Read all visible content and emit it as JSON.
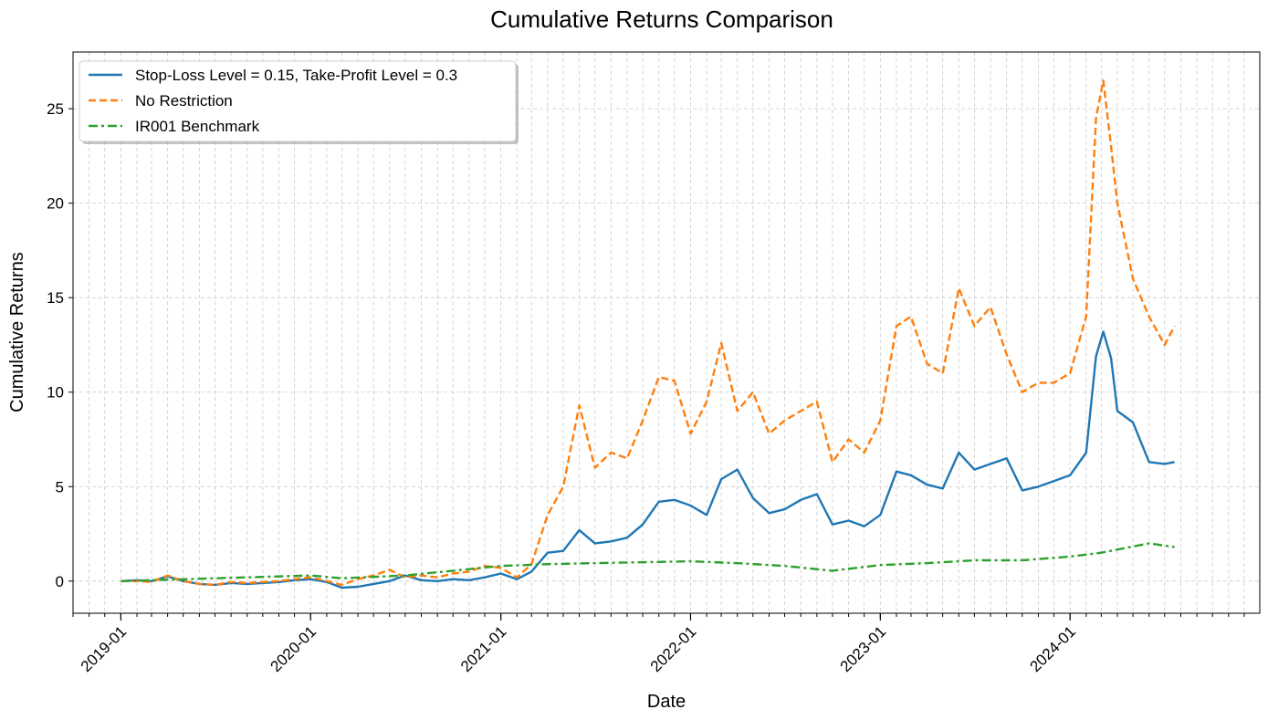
{
  "chart_data": {
    "type": "line",
    "title": "Cumulative Returns Comparison",
    "xlabel": "Date",
    "ylabel": "Cumulative Returns",
    "xlim": [
      "2018-10-01",
      "2024-12-31"
    ],
    "ylim": [
      -1.7,
      28
    ],
    "y_ticks": [
      0,
      5,
      10,
      15,
      20,
      25
    ],
    "x_ticks": [
      "2019-01",
      "2020-01",
      "2021-01",
      "2022-01",
      "2023-01",
      "2024-01"
    ],
    "grid": true,
    "legend_position": "top-left",
    "series": [
      {
        "name": "Stop-Loss Level = 0.15, Take-Profit Level = 0.3",
        "color": "#1f77b4",
        "style": "solid",
        "points": [
          [
            "2019-01-01",
            0
          ],
          [
            "2019-02-01",
            0.05
          ],
          [
            "2019-03-01",
            0.0
          ],
          [
            "2019-04-01",
            0.25
          ],
          [
            "2019-05-01",
            0.0
          ],
          [
            "2019-06-01",
            -0.15
          ],
          [
            "2019-07-01",
            -0.2
          ],
          [
            "2019-08-01",
            -0.1
          ],
          [
            "2019-09-01",
            -0.15
          ],
          [
            "2019-10-01",
            -0.1
          ],
          [
            "2019-11-01",
            -0.05
          ],
          [
            "2019-12-01",
            0.05
          ],
          [
            "2020-01-01",
            0.1
          ],
          [
            "2020-02-01",
            -0.05
          ],
          [
            "2020-03-01",
            -0.35
          ],
          [
            "2020-04-01",
            -0.3
          ],
          [
            "2020-05-01",
            -0.15
          ],
          [
            "2020-06-01",
            0.0
          ],
          [
            "2020-07-01",
            0.3
          ],
          [
            "2020-08-01",
            0.05
          ],
          [
            "2020-09-01",
            0.0
          ],
          [
            "2020-10-01",
            0.1
          ],
          [
            "2020-11-01",
            0.05
          ],
          [
            "2020-12-01",
            0.2
          ],
          [
            "2021-01-01",
            0.4
          ],
          [
            "2021-02-01",
            0.1
          ],
          [
            "2021-03-01",
            0.5
          ],
          [
            "2021-04-01",
            1.5
          ],
          [
            "2021-05-01",
            1.6
          ],
          [
            "2021-06-01",
            2.7
          ],
          [
            "2021-07-01",
            2.0
          ],
          [
            "2021-08-01",
            2.1
          ],
          [
            "2021-09-01",
            2.3
          ],
          [
            "2021-10-01",
            3.0
          ],
          [
            "2021-11-01",
            4.2
          ],
          [
            "2021-12-01",
            4.3
          ],
          [
            "2022-01-01",
            4.0
          ],
          [
            "2022-02-01",
            3.5
          ],
          [
            "2022-03-01",
            5.4
          ],
          [
            "2022-04-01",
            5.9
          ],
          [
            "2022-05-01",
            4.4
          ],
          [
            "2022-06-01",
            3.6
          ],
          [
            "2022-07-01",
            3.8
          ],
          [
            "2022-08-01",
            4.3
          ],
          [
            "2022-09-01",
            4.6
          ],
          [
            "2022-10-01",
            3.0
          ],
          [
            "2022-11-01",
            3.2
          ],
          [
            "2022-12-01",
            2.9
          ],
          [
            "2023-01-01",
            3.5
          ],
          [
            "2023-02-01",
            5.8
          ],
          [
            "2023-03-01",
            5.6
          ],
          [
            "2023-04-01",
            5.1
          ],
          [
            "2023-05-01",
            4.9
          ],
          [
            "2023-06-01",
            6.8
          ],
          [
            "2023-07-01",
            5.9
          ],
          [
            "2023-08-01",
            6.2
          ],
          [
            "2023-09-01",
            6.5
          ],
          [
            "2023-10-01",
            4.8
          ],
          [
            "2023-11-01",
            5.0
          ],
          [
            "2023-12-01",
            5.3
          ],
          [
            "2024-01-01",
            5.6
          ],
          [
            "2024-02-01",
            6.8
          ],
          [
            "2024-02-20",
            11.9
          ],
          [
            "2024-03-05",
            13.2
          ],
          [
            "2024-03-20",
            11.8
          ],
          [
            "2024-04-01",
            9.0
          ],
          [
            "2024-05-01",
            8.4
          ],
          [
            "2024-06-01",
            6.3
          ],
          [
            "2024-07-01",
            6.2
          ],
          [
            "2024-07-20",
            6.3
          ]
        ]
      },
      {
        "name": "No Restriction",
        "color": "#ff7f0e",
        "style": "dashed",
        "points": [
          [
            "2019-01-01",
            0
          ],
          [
            "2019-02-01",
            0.0
          ],
          [
            "2019-03-01",
            -0.05
          ],
          [
            "2019-04-01",
            0.3
          ],
          [
            "2019-05-01",
            0.0
          ],
          [
            "2019-06-01",
            -0.15
          ],
          [
            "2019-07-01",
            -0.2
          ],
          [
            "2019-08-01",
            -0.05
          ],
          [
            "2019-09-01",
            -0.1
          ],
          [
            "2019-10-01",
            -0.05
          ],
          [
            "2019-11-01",
            0.0
          ],
          [
            "2019-12-01",
            0.1
          ],
          [
            "2020-01-01",
            0.2
          ],
          [
            "2020-02-01",
            0.0
          ],
          [
            "2020-03-01",
            -0.2
          ],
          [
            "2020-04-01",
            0.1
          ],
          [
            "2020-05-01",
            0.3
          ],
          [
            "2020-06-01",
            0.6
          ],
          [
            "2020-07-01",
            0.2
          ],
          [
            "2020-08-01",
            0.3
          ],
          [
            "2020-09-01",
            0.2
          ],
          [
            "2020-10-01",
            0.4
          ],
          [
            "2020-11-01",
            0.5
          ],
          [
            "2020-12-01",
            0.8
          ],
          [
            "2021-01-01",
            0.7
          ],
          [
            "2021-02-01",
            0.2
          ],
          [
            "2021-03-01",
            0.9
          ],
          [
            "2021-04-01",
            3.5
          ],
          [
            "2021-05-01",
            5.0
          ],
          [
            "2021-06-01",
            9.3
          ],
          [
            "2021-07-01",
            6.0
          ],
          [
            "2021-08-01",
            6.8
          ],
          [
            "2021-09-01",
            6.5
          ],
          [
            "2021-10-01",
            8.5
          ],
          [
            "2021-11-01",
            10.8
          ],
          [
            "2021-12-01",
            10.6
          ],
          [
            "2022-01-01",
            7.8
          ],
          [
            "2022-02-01",
            9.5
          ],
          [
            "2022-03-01",
            12.6
          ],
          [
            "2022-04-01",
            9.0
          ],
          [
            "2022-05-01",
            10.0
          ],
          [
            "2022-06-01",
            7.8
          ],
          [
            "2022-07-01",
            8.5
          ],
          [
            "2022-08-01",
            9.0
          ],
          [
            "2022-09-01",
            9.5
          ],
          [
            "2022-10-01",
            6.3
          ],
          [
            "2022-11-01",
            7.5
          ],
          [
            "2022-12-01",
            6.8
          ],
          [
            "2023-01-01",
            8.5
          ],
          [
            "2023-02-01",
            13.5
          ],
          [
            "2023-03-01",
            14.0
          ],
          [
            "2023-04-01",
            11.5
          ],
          [
            "2023-05-01",
            11.0
          ],
          [
            "2023-06-01",
            15.5
          ],
          [
            "2023-07-01",
            13.5
          ],
          [
            "2023-08-01",
            14.5
          ],
          [
            "2023-09-01",
            12.0
          ],
          [
            "2023-10-01",
            10.0
          ],
          [
            "2023-11-01",
            10.5
          ],
          [
            "2023-12-01",
            10.5
          ],
          [
            "2024-01-01",
            11.0
          ],
          [
            "2024-02-01",
            14.0
          ],
          [
            "2024-02-20",
            24.5
          ],
          [
            "2024-03-05",
            26.5
          ],
          [
            "2024-03-20",
            23.0
          ],
          [
            "2024-04-01",
            20.0
          ],
          [
            "2024-05-01",
            16.0
          ],
          [
            "2024-06-01",
            14.0
          ],
          [
            "2024-07-01",
            12.5
          ],
          [
            "2024-07-20",
            13.5
          ]
        ]
      },
      {
        "name": "IR001 Benchmark",
        "color": "#2ca02c",
        "style": "dashdot",
        "points": [
          [
            "2019-01-01",
            0
          ],
          [
            "2019-07-01",
            0.15
          ],
          [
            "2020-01-01",
            0.3
          ],
          [
            "2020-03-01",
            0.15
          ],
          [
            "2020-07-01",
            0.3
          ],
          [
            "2021-01-01",
            0.8
          ],
          [
            "2021-04-01",
            0.9
          ],
          [
            "2021-07-01",
            0.95
          ],
          [
            "2022-01-01",
            1.05
          ],
          [
            "2022-04-01",
            0.95
          ],
          [
            "2022-07-01",
            0.8
          ],
          [
            "2022-10-01",
            0.55
          ],
          [
            "2023-01-01",
            0.85
          ],
          [
            "2023-04-01",
            0.95
          ],
          [
            "2023-07-01",
            1.1
          ],
          [
            "2023-10-01",
            1.1
          ],
          [
            "2024-01-01",
            1.3
          ],
          [
            "2024-03-01",
            1.5
          ],
          [
            "2024-06-01",
            2.0
          ],
          [
            "2024-07-20",
            1.8
          ]
        ]
      }
    ]
  }
}
